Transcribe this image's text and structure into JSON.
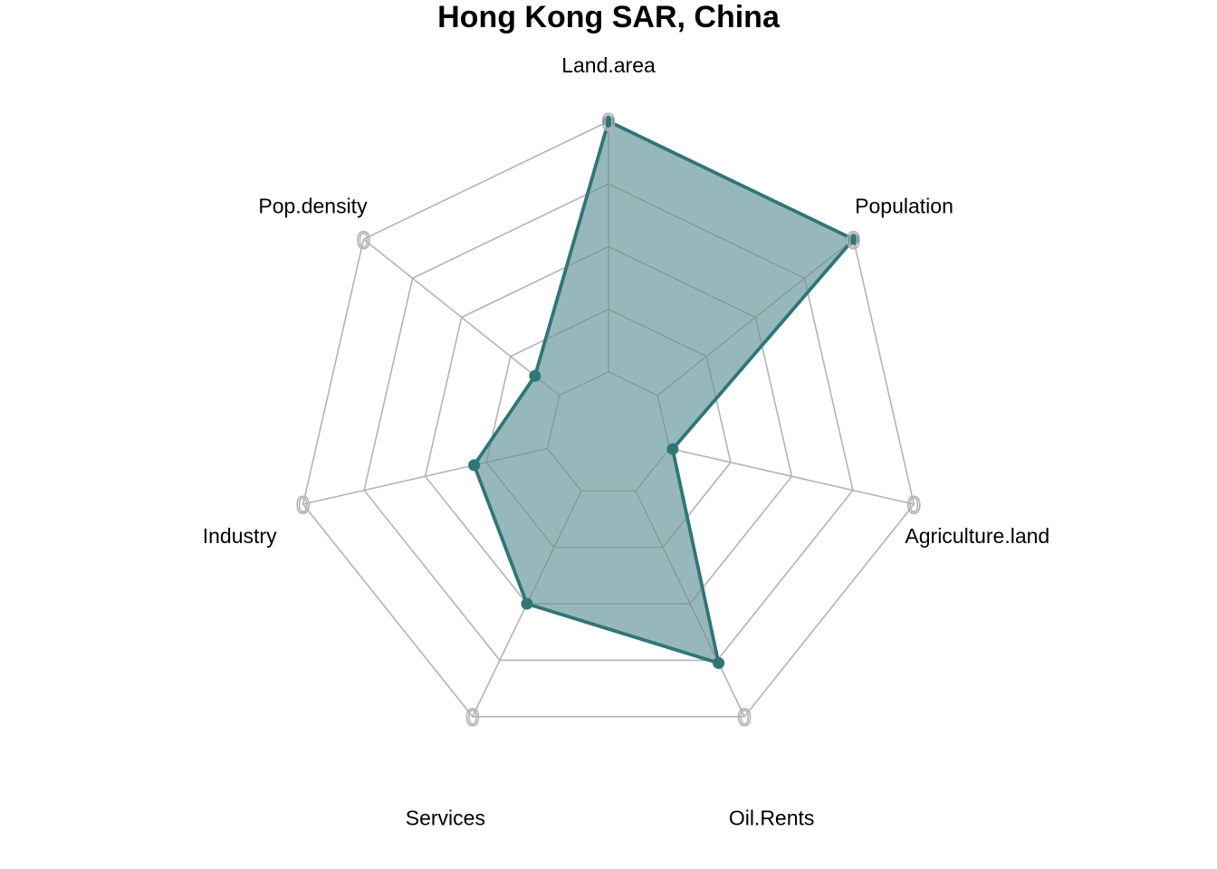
{
  "chart_data": {
    "type": "radar",
    "title": "Hong Kong SAR, China",
    "axes": [
      "Land.area",
      "Population",
      "Agriculture.land",
      "Oil.Rents",
      "Services",
      "Industry",
      "Pop.density"
    ],
    "series": [
      {
        "values": [
          1.0,
          1.0,
          0.21,
          0.81,
          0.6,
          0.44,
          0.3
        ]
      }
    ],
    "rlim": [
      0,
      1
    ],
    "grid_levels": 5,
    "outer_tick_label": "0",
    "grid": true,
    "colors": {
      "series_fill": "#7fa8ab",
      "series_stroke": "#2f7677",
      "grid": "#b3b3b3",
      "inner_grid": "#8a9a9b"
    }
  }
}
